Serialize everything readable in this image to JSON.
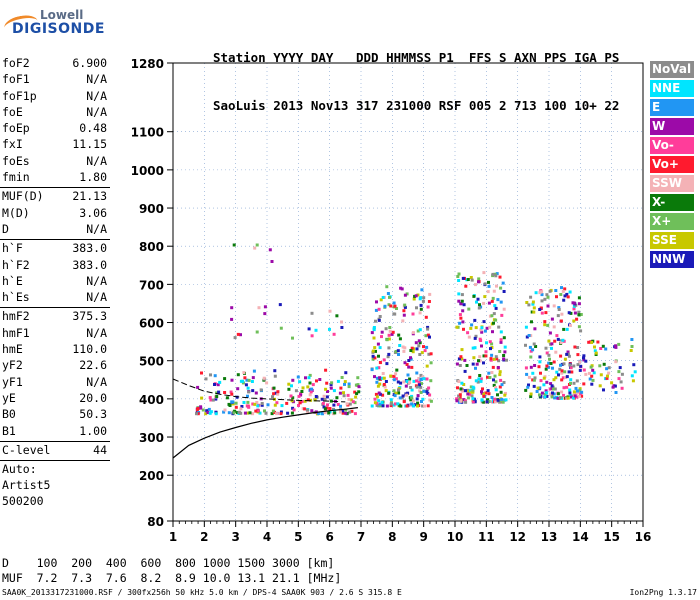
{
  "logo": {
    "line1": "Lowell",
    "line2": "DIGISONDE"
  },
  "header": {
    "line1": "Station YYYY DAY   DDD HHMMSS P1  FFS S AXN PPS IGA PS",
    "line2": "SaoLuis 2013 Nov13 317 231000 RSF 005 2 713 100 10+ 22"
  },
  "params": {
    "group1": [
      {
        "name": "foF2",
        "value": "6.900"
      },
      {
        "name": "foF1",
        "value": "N/A"
      },
      {
        "name": "foF1p",
        "value": "N/A"
      },
      {
        "name": "foE",
        "value": "N/A"
      },
      {
        "name": "foEp",
        "value": "0.48"
      },
      {
        "name": "fxI",
        "value": "11.15"
      },
      {
        "name": "foEs",
        "value": "N/A"
      },
      {
        "name": "fmin",
        "value": "1.80"
      }
    ],
    "group2": [
      {
        "name": "MUF(D)",
        "value": "21.13"
      },
      {
        "name": "M(D)",
        "value": "3.06"
      },
      {
        "name": "D",
        "value": "N/A"
      }
    ],
    "group3": [
      {
        "name": "h`F",
        "value": "383.0"
      },
      {
        "name": "h`F2",
        "value": "383.0"
      },
      {
        "name": "h`E",
        "value": "N/A"
      },
      {
        "name": "h`Es",
        "value": "N/A"
      }
    ],
    "group4": [
      {
        "name": "hmF2",
        "value": "375.3"
      },
      {
        "name": "hmF1",
        "value": "N/A"
      },
      {
        "name": "hmE",
        "value": "110.0"
      },
      {
        "name": "yF2",
        "value": "22.6"
      },
      {
        "name": "yF1",
        "value": "N/A"
      },
      {
        "name": "yE",
        "value": "20.0"
      },
      {
        "name": "B0",
        "value": "50.3"
      },
      {
        "name": "B1",
        "value": "1.00"
      }
    ],
    "clevel": {
      "name": "C-level",
      "value": "44"
    },
    "auto": [
      "Auto:",
      "Artist5",
      "500200"
    ]
  },
  "legend": [
    {
      "label": "NoVal",
      "color": "#8c8c8c"
    },
    {
      "label": "NNE",
      "color": "#00e5ff"
    },
    {
      "label": "E",
      "color": "#2196f3"
    },
    {
      "label": "W",
      "color": "#9c0aa8"
    },
    {
      "label": "Vo-",
      "color": "#ff3d9a"
    },
    {
      "label": "Vo+",
      "color": "#ff1a2e"
    },
    {
      "label": "SSW",
      "color": "#f4b2b6"
    },
    {
      "label": "X-",
      "color": "#0a7a0a"
    },
    {
      "label": "X+",
      "color": "#6fbf5a"
    },
    {
      "label": "SSE",
      "color": "#c8c800"
    },
    {
      "label": "NNW",
      "color": "#1a1ab8"
    }
  ],
  "bottom": {
    "line1": "D    100  200  400  600  800 1000 1500 3000 [km]",
    "line2": "MUF  7.2  7.3  7.6  8.2  8.9 10.0 13.1 21.1 [MHz]"
  },
  "footer": "SAA0K_2013317231000.RSF / 300fx256h 50 kHz 5.0 km / DPS-4 SAA0K 903 / 2.6 S 315.8 E",
  "version": "Ion2Png 1.3.17",
  "chart_data": {
    "type": "scatter",
    "title": "",
    "xlabel": "",
    "ylabel": "",
    "xlim": [
      1,
      16
    ],
    "ylim": [
      80,
      1280
    ],
    "xticks": [
      1,
      2,
      3,
      4,
      5,
      6,
      7,
      8,
      9,
      10,
      11,
      12,
      13,
      14,
      15,
      16
    ],
    "yticks": [
      80,
      200,
      300,
      400,
      500,
      600,
      700,
      800,
      900,
      1000,
      1100,
      1280
    ],
    "grid": true,
    "profile_curve": {
      "x": [
        1.0,
        1.5,
        2.0,
        2.5,
        3.0,
        3.5,
        4.0,
        4.5,
        5.0,
        5.5,
        6.0,
        6.5,
        6.9
      ],
      "y": [
        245,
        278,
        297,
        313,
        325,
        336,
        345,
        352,
        358,
        364,
        369,
        373,
        377
      ]
    },
    "trace_curve": {
      "x": [
        1.0,
        1.5,
        2.0,
        2.5,
        3.0,
        3.5,
        4.0,
        4.5,
        5.0,
        5.5,
        6.0,
        6.5
      ],
      "y": [
        452,
        435,
        420,
        412,
        406,
        402,
        400,
        398,
        396,
        395,
        394,
        392
      ]
    },
    "echo_clusters": [
      {
        "x": [
          1.7,
          6.9
        ],
        "y": [
          365,
          480
        ],
        "density": "high"
      },
      {
        "x": [
          7.3,
          9.2
        ],
        "y": [
          385,
          700
        ],
        "density": "high"
      },
      {
        "x": [
          10.0,
          11.6
        ],
        "y": [
          395,
          740
        ],
        "density": "high"
      },
      {
        "x": [
          12.2,
          14.0
        ],
        "y": [
          405,
          700
        ],
        "density": "high"
      },
      {
        "x": [
          14.0,
          15.8
        ],
        "y": [
          420,
          560
        ],
        "density": "medium"
      },
      {
        "x": [
          2.9,
          4.3
        ],
        "y": [
          760,
          830
        ],
        "density": "low"
      },
      {
        "x": [
          2.5,
          6.5
        ],
        "y": [
          560,
          660
        ],
        "density": "low"
      }
    ]
  }
}
